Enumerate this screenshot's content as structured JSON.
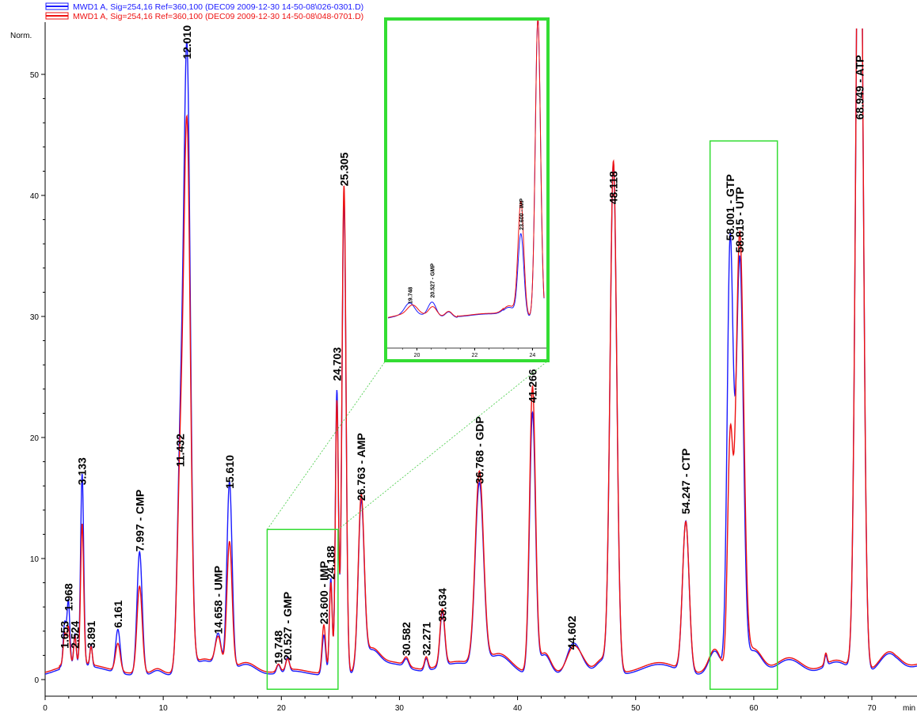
{
  "chart_data": {
    "type": "line",
    "xlabel": "min",
    "ylabel": "Norm.",
    "xlim": [
      0,
      74
    ],
    "ylim": [
      -1.5,
      54
    ],
    "x_ticks": [
      0,
      10,
      20,
      30,
      40,
      50,
      60,
      70
    ],
    "y_ticks": [
      0,
      10,
      20,
      30,
      40,
      50
    ],
    "legend_position": "top-left",
    "series": [
      {
        "name": "MWD1 A, Sig=254,16 Ref=360,100 (DEC09 2009-12-30 14-50-08\\026-0301.D)",
        "color": "#1a1aff",
        "peaks": [
          {
            "rt": 1.653,
            "height": 3.5,
            "sigma": 0.12
          },
          {
            "rt": 1.968,
            "height": 5.3,
            "sigma": 0.12
          },
          {
            "rt": 2.524,
            "height": 2.5,
            "sigma": 0.1
          },
          {
            "rt": 3.133,
            "height": 15.8,
            "sigma": 0.13
          },
          {
            "rt": 3.891,
            "height": 1.8,
            "sigma": 0.1
          },
          {
            "rt": 6.161,
            "height": 3.6,
            "sigma": 0.2
          },
          {
            "rt": 7.997,
            "height": 10.2,
            "sigma": 0.22
          },
          {
            "rt": 11.432,
            "height": 16.5,
            "sigma": 0.25
          },
          {
            "rt": 12.01,
            "height": 50.7,
            "sigma": 0.28
          },
          {
            "rt": 14.658,
            "height": 2.8,
            "sigma": 0.25
          },
          {
            "rt": 15.61,
            "height": 15.6,
            "sigma": 0.22
          },
          {
            "rt": 19.748,
            "height": 0.7,
            "sigma": 0.15
          },
          {
            "rt": 20.527,
            "height": 1.2,
            "sigma": 0.15
          },
          {
            "rt": 23.6,
            "height": 3.3,
            "sigma": 0.15
          },
          {
            "rt": 24.188,
            "height": 8.0,
            "sigma": 0.12
          },
          {
            "rt": 24.703,
            "height": 23.5,
            "sigma": 0.13
          },
          {
            "rt": 25.305,
            "height": 39.5,
            "sigma": 0.17
          },
          {
            "rt": 26.763,
            "height": 13.5,
            "sigma": 0.25
          },
          {
            "rt": 30.582,
            "height": 0.7,
            "sigma": 0.2
          },
          {
            "rt": 32.271,
            "height": 1.0,
            "sigma": 0.15
          },
          {
            "rt": 33.634,
            "height": 4.5,
            "sigma": 0.2
          },
          {
            "rt": 36.768,
            "height": 15.0,
            "sigma": 0.35
          },
          {
            "rt": 41.266,
            "height": 21.5,
            "sigma": 0.25
          },
          {
            "rt": 44.602,
            "height": 2.0,
            "sigma": 0.5
          },
          {
            "rt": 48.118,
            "height": 42.0,
            "sigma": 0.28
          },
          {
            "rt": 54.247,
            "height": 12.5,
            "sigma": 0.28
          },
          {
            "rt": 58.001,
            "height": 35.5,
            "sigma": 0.25
          },
          {
            "rt": 58.815,
            "height": 34.0,
            "sigma": 0.3
          },
          {
            "rt": 68.949,
            "height": 75.0,
            "sigma": 0.3
          }
        ]
      },
      {
        "name": "MWD1 A, Sig=254,16 Ref=360,100 (DEC09 2009-12-30 14-50-08\\048-0701.D)",
        "color": "#ee1111",
        "peaks": [
          {
            "rt": 1.653,
            "height": 2.5,
            "sigma": 0.12
          },
          {
            "rt": 1.968,
            "height": 3.0,
            "sigma": 0.12
          },
          {
            "rt": 2.524,
            "height": 2.2,
            "sigma": 0.1
          },
          {
            "rt": 3.133,
            "height": 11.5,
            "sigma": 0.13
          },
          {
            "rt": 3.891,
            "height": 1.5,
            "sigma": 0.1
          },
          {
            "rt": 6.161,
            "height": 2.3,
            "sigma": 0.2
          },
          {
            "rt": 7.997,
            "height": 7.2,
            "sigma": 0.22
          },
          {
            "rt": 11.432,
            "height": 15.0,
            "sigma": 0.25
          },
          {
            "rt": 12.01,
            "height": 44.5,
            "sigma": 0.28
          },
          {
            "rt": 14.658,
            "height": 2.4,
            "sigma": 0.25
          },
          {
            "rt": 15.61,
            "height": 10.5,
            "sigma": 0.22
          },
          {
            "rt": 19.748,
            "height": 0.6,
            "sigma": 0.15
          },
          {
            "rt": 20.527,
            "height": 0.9,
            "sigma": 0.15
          },
          {
            "rt": 23.6,
            "height": 4.0,
            "sigma": 0.15
          },
          {
            "rt": 24.188,
            "height": 7.5,
            "sigma": 0.12
          },
          {
            "rt": 24.703,
            "height": 22.5,
            "sigma": 0.13
          },
          {
            "rt": 25.305,
            "height": 40.3,
            "sigma": 0.17
          },
          {
            "rt": 26.763,
            "height": 13.8,
            "sigma": 0.25
          },
          {
            "rt": 30.582,
            "height": 0.7,
            "sigma": 0.2
          },
          {
            "rt": 32.271,
            "height": 1.0,
            "sigma": 0.15
          },
          {
            "rt": 33.634,
            "height": 4.6,
            "sigma": 0.2
          },
          {
            "rt": 36.768,
            "height": 15.8,
            "sigma": 0.35
          },
          {
            "rt": 41.266,
            "height": 23.5,
            "sigma": 0.25
          },
          {
            "rt": 44.602,
            "height": 1.6,
            "sigma": 0.5
          },
          {
            "rt": 48.118,
            "height": 42.0,
            "sigma": 0.28
          },
          {
            "rt": 54.247,
            "height": 12.3,
            "sigma": 0.28
          },
          {
            "rt": 58.001,
            "height": 18.5,
            "sigma": 0.22
          },
          {
            "rt": 58.815,
            "height": 36.0,
            "sigma": 0.33
          },
          {
            "rt": 68.949,
            "height": 75.0,
            "sigma": 0.3
          }
        ]
      }
    ],
    "peak_labels": [
      {
        "text": "1.653",
        "x": 1.653,
        "y": 2.3
      },
      {
        "text": "1.968",
        "x": 1.968,
        "y": 5.4
      },
      {
        "text": "2.524",
        "x": 2.524,
        "y": 2.3
      },
      {
        "text": "3.133",
        "x": 3.133,
        "y": 15.8
      },
      {
        "text": "3.891",
        "x": 3.891,
        "y": 2.3
      },
      {
        "text": "6.161",
        "x": 6.161,
        "y": 4.0
      },
      {
        "text": "7.997 - CMP",
        "x": 7.997,
        "y": 10.3
      },
      {
        "text": "11.432",
        "x": 11.432,
        "y": 17.3
      },
      {
        "text": "12.010",
        "x": 12.01,
        "y": 51.0
      },
      {
        "text": "14.658 - UMP",
        "x": 14.658,
        "y": 3.5
      },
      {
        "text": "15.610",
        "x": 15.61,
        "y": 15.5
      },
      {
        "text": "19.748",
        "x": 19.748,
        "y": 1.0
      },
      {
        "text": "20.527 - GMP",
        "x": 20.527,
        "y": 1.3
      },
      {
        "text": "23.600 - IMP",
        "x": 23.6,
        "y": 4.3
      },
      {
        "text": "24.188",
        "x": 24.188,
        "y": 8.0
      },
      {
        "text": "24.703",
        "x": 24.703,
        "y": 24.4
      },
      {
        "text": "25.305",
        "x": 25.305,
        "y": 40.5
      },
      {
        "text": "26.763 - AMP",
        "x": 26.763,
        "y": 14.5
      },
      {
        "text": "30.582",
        "x": 30.582,
        "y": 1.7
      },
      {
        "text": "32.271",
        "x": 32.271,
        "y": 1.7
      },
      {
        "text": "33.634",
        "x": 33.634,
        "y": 4.5
      },
      {
        "text": "36.768 - GDP",
        "x": 36.768,
        "y": 15.9
      },
      {
        "text": "41.266",
        "x": 41.266,
        "y": 22.6
      },
      {
        "text": "44.602",
        "x": 44.602,
        "y": 2.2
      },
      {
        "text": "48.118",
        "x": 48.118,
        "y": 39.0
      },
      {
        "text": "54.247 - CTP",
        "x": 54.247,
        "y": 13.4
      },
      {
        "text": "58.001 - GTP",
        "x": 58.001,
        "y": 36.0
      },
      {
        "text": "58.815 - UTP",
        "x": 58.815,
        "y": 35.0
      },
      {
        "text": "68.949 - ATP",
        "x": 68.949,
        "y": 46.0
      }
    ],
    "highlight_boxes": [
      {
        "x0": 18.8,
        "x1": 24.8,
        "y0": -0.8,
        "y1": 12.4
      },
      {
        "x0": 56.3,
        "x1": 62.0,
        "y0": -0.8,
        "y1": 44.5
      }
    ],
    "inset": {
      "xlim": [
        19.0,
        24.4
      ],
      "x_ticks": [
        20,
        22,
        24
      ],
      "ylim": [
        -0.5,
        30
      ],
      "source_box": 0,
      "peak_labels": [
        {
          "text": "19.748",
          "x": 19.748,
          "y": 1.4
        },
        {
          "text": "20.527 - GMP",
          "x": 20.527,
          "y": 2.0
        },
        {
          "text": "23.600 - IMP",
          "x": 23.6,
          "y": 8.8
        }
      ],
      "series": [
        {
          "color": "#1a1aff",
          "baseline": 0.3,
          "peaks": [
            {
              "rt": 19.748,
              "height": 1.2,
              "sigma": 0.17
            },
            {
              "rt": 20.527,
              "height": 1.45,
              "sigma": 0.14
            },
            {
              "rt": 21.1,
              "height": 0.6,
              "sigma": 0.12
            },
            {
              "rt": 23.2,
              "height": 0.9,
              "sigma": 0.2
            },
            {
              "rt": 23.6,
              "height": 8.3,
              "sigma": 0.1
            },
            {
              "rt": 24.188,
              "height": 30,
              "sigma": 0.09
            }
          ]
        },
        {
          "color": "#ee1111",
          "baseline": 0.35,
          "peaks": [
            {
              "rt": 19.85,
              "height": 0.95,
              "sigma": 0.18
            },
            {
              "rt": 20.55,
              "height": 0.95,
              "sigma": 0.14
            },
            {
              "rt": 21.1,
              "height": 0.6,
              "sigma": 0.12
            },
            {
              "rt": 23.2,
              "height": 1.0,
              "sigma": 0.2
            },
            {
              "rt": 23.6,
              "height": 11.5,
              "sigma": 0.1
            },
            {
              "rt": 24.188,
              "height": 30,
              "sigma": 0.09
            }
          ]
        }
      ]
    }
  }
}
